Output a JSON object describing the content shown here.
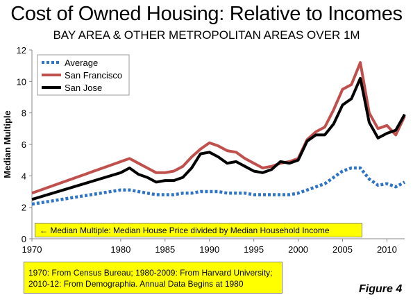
{
  "title": "Cost of Owned Housing: Relative to Incomes",
  "subtitle": "BAY AREA & OTHER METROPOLITAN AREAS OVER 1M",
  "note_median": "← Median Multiple: Median House Price divided by Median Household Income",
  "note_sources": "1970: From Census Bureau; 1980-2009: From Harvard University; 2010-12: From Demographia. Annual Data Begins at 1980",
  "figure_label": "Figure 4",
  "chart_data": {
    "type": "line",
    "title": "Cost of Owned Housing: Relative to Incomes",
    "ylabel": "Median Multiple",
    "xlabel": "",
    "xlim": [
      1970,
      2012
    ],
    "ylim": [
      0,
      12
    ],
    "x_ticks": [
      1970,
      1980,
      1985,
      1990,
      1995,
      2000,
      2005,
      2010
    ],
    "y_ticks": [
      0,
      2,
      4,
      6,
      8,
      10,
      12
    ],
    "grid": false,
    "legend_position": "top-left",
    "series": [
      {
        "name": "Average",
        "color": "#2e75c8",
        "style": "dotted",
        "points": [
          [
            1970,
            2.2
          ],
          [
            1980,
            3.1
          ],
          [
            1981,
            3.1
          ],
          [
            1982,
            3.0
          ],
          [
            1983,
            2.9
          ],
          [
            1984,
            2.8
          ],
          [
            1985,
            2.8
          ],
          [
            1986,
            2.8
          ],
          [
            1987,
            2.9
          ],
          [
            1988,
            2.9
          ],
          [
            1989,
            3.0
          ],
          [
            1990,
            3.0
          ],
          [
            1991,
            3.0
          ],
          [
            1992,
            2.9
          ],
          [
            1993,
            2.9
          ],
          [
            1994,
            2.9
          ],
          [
            1995,
            2.8
          ],
          [
            1996,
            2.8
          ],
          [
            1997,
            2.8
          ],
          [
            1998,
            2.8
          ],
          [
            1999,
            2.8
          ],
          [
            2000,
            2.9
          ],
          [
            2001,
            3.1
          ],
          [
            2002,
            3.3
          ],
          [
            2003,
            3.5
          ],
          [
            2004,
            3.9
          ],
          [
            2005,
            4.3
          ],
          [
            2006,
            4.5
          ],
          [
            2007,
            4.5
          ],
          [
            2008,
            3.8
          ],
          [
            2009,
            3.4
          ],
          [
            2010,
            3.5
          ],
          [
            2011,
            3.3
          ],
          [
            2012,
            3.6
          ]
        ]
      },
      {
        "name": "San Francisco",
        "color": "#c0504d",
        "style": "solid",
        "points": [
          [
            1970,
            2.9
          ],
          [
            1980,
            4.9
          ],
          [
            1981,
            5.1
          ],
          [
            1982,
            4.8
          ],
          [
            1983,
            4.5
          ],
          [
            1984,
            4.2
          ],
          [
            1985,
            4.2
          ],
          [
            1986,
            4.3
          ],
          [
            1987,
            4.6
          ],
          [
            1988,
            5.2
          ],
          [
            1989,
            5.7
          ],
          [
            1990,
            6.1
          ],
          [
            1991,
            5.9
          ],
          [
            1992,
            5.6
          ],
          [
            1993,
            5.5
          ],
          [
            1994,
            5.1
          ],
          [
            1995,
            4.8
          ],
          [
            1996,
            4.5
          ],
          [
            1997,
            4.6
          ],
          [
            1998,
            4.8
          ],
          [
            1999,
            4.9
          ],
          [
            2000,
            5.1
          ],
          [
            2001,
            6.3
          ],
          [
            2002,
            6.8
          ],
          [
            2003,
            7.1
          ],
          [
            2004,
            8.2
          ],
          [
            2005,
            9.5
          ],
          [
            2006,
            9.8
          ],
          [
            2007,
            11.2
          ],
          [
            2008,
            8.0
          ],
          [
            2009,
            7.0
          ],
          [
            2010,
            7.2
          ],
          [
            2011,
            6.6
          ],
          [
            2012,
            7.8
          ]
        ]
      },
      {
        "name": "San Jose",
        "color": "#000000",
        "style": "solid",
        "points": [
          [
            1970,
            2.5
          ],
          [
            1980,
            4.2
          ],
          [
            1981,
            4.5
          ],
          [
            1982,
            4.1
          ],
          [
            1983,
            3.9
          ],
          [
            1984,
            3.6
          ],
          [
            1985,
            3.7
          ],
          [
            1986,
            3.7
          ],
          [
            1987,
            3.9
          ],
          [
            1988,
            4.5
          ],
          [
            1989,
            5.4
          ],
          [
            1990,
            5.5
          ],
          [
            1991,
            5.2
          ],
          [
            1992,
            4.8
          ],
          [
            1993,
            4.9
          ],
          [
            1994,
            4.6
          ],
          [
            1995,
            4.3
          ],
          [
            1996,
            4.2
          ],
          [
            1997,
            4.4
          ],
          [
            1998,
            4.9
          ],
          [
            1999,
            4.8
          ],
          [
            2000,
            5.0
          ],
          [
            2001,
            6.2
          ],
          [
            2002,
            6.6
          ],
          [
            2003,
            6.6
          ],
          [
            2004,
            7.3
          ],
          [
            2005,
            8.5
          ],
          [
            2006,
            8.9
          ],
          [
            2007,
            10.2
          ],
          [
            2008,
            7.4
          ],
          [
            2009,
            6.4
          ],
          [
            2010,
            6.7
          ],
          [
            2011,
            6.9
          ],
          [
            2012,
            7.9
          ]
        ]
      }
    ]
  }
}
